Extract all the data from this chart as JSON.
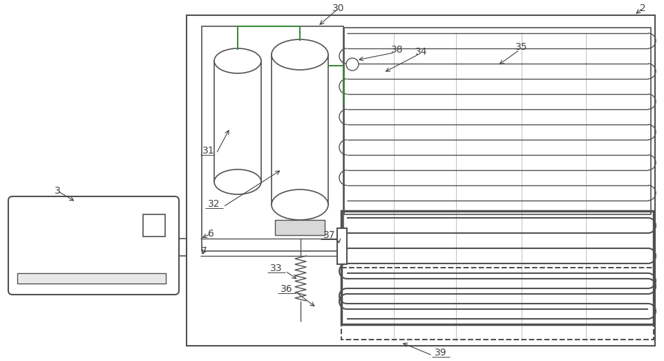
{
  "bg": "#ffffff",
  "lc": "#505050",
  "gc": "#3a8a3a",
  "fig_w": 9.61,
  "fig_h": 5.22,
  "dpi": 100
}
